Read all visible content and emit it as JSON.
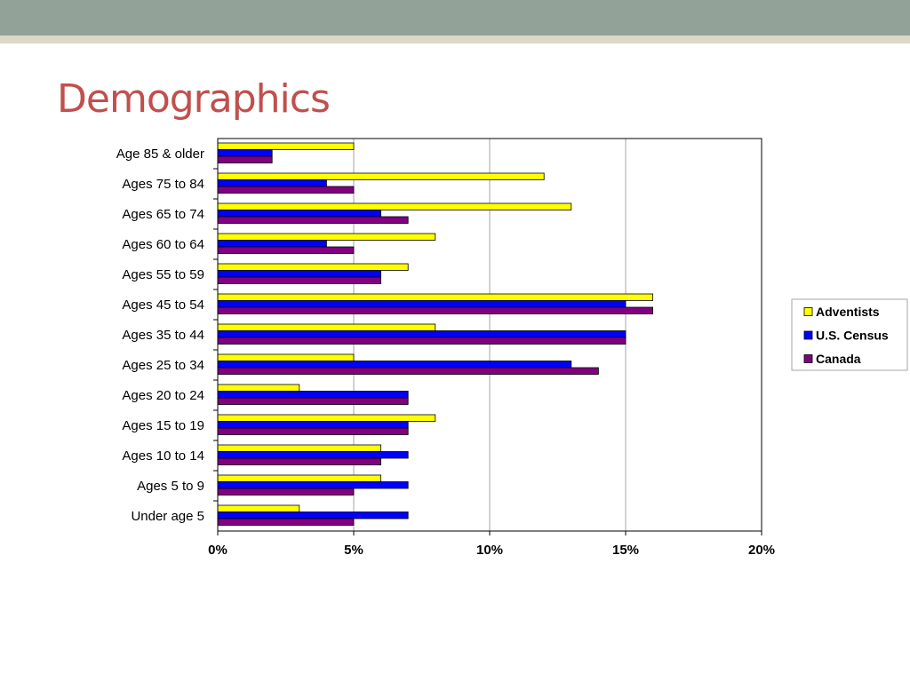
{
  "slide": {
    "title": "Demographics"
  },
  "chart_data": {
    "type": "bar",
    "orientation": "horizontal",
    "categories": [
      "Under age 5",
      "Ages 5 to 9",
      "Ages 10 to 14",
      "Ages 15 to 19",
      "Ages 20 to 24",
      "Ages 25 to 34",
      "Ages 35 to 44",
      "Ages 45 to 54",
      "Ages 55 to 59",
      "Ages 60 to 64",
      "Ages 65 to 74",
      "Ages 75 to 84",
      "Age 85 & older"
    ],
    "series": [
      {
        "name": "Adventists",
        "color": "#ffff00",
        "values": [
          3,
          6,
          6,
          8,
          3,
          5,
          8,
          16,
          7,
          8,
          13,
          12,
          5
        ]
      },
      {
        "name": "U.S. Census",
        "color": "#0000ff",
        "values": [
          7,
          7,
          7,
          7,
          7,
          13,
          15,
          15,
          6,
          4,
          6,
          4,
          2
        ]
      },
      {
        "name": "Canada",
        "color": "#800080",
        "values": [
          5,
          5,
          6,
          7,
          7,
          14,
          15,
          16,
          6,
          5,
          7,
          5,
          2
        ]
      }
    ],
    "xlim": [
      0,
      20
    ],
    "xticks": [
      0,
      5,
      10,
      15,
      20
    ],
    "tick_format": "percent",
    "grid": "vertical",
    "legend_position": "right",
    "title": "",
    "xlabel": "",
    "ylabel": ""
  }
}
